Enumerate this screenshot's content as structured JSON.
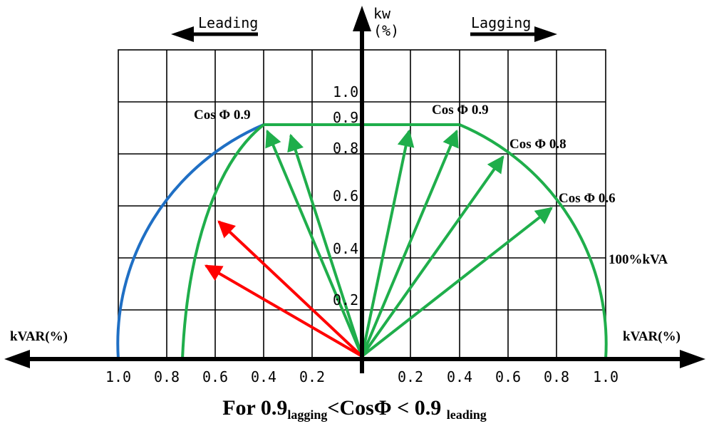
{
  "labels": {
    "kw_axis_line1": "kw",
    "kw_axis_line2": "(%)",
    "leading": "Leading",
    "lagging": "Lagging",
    "kvar_left": "kVAR(%)",
    "kvar_right": "kVAR(%)",
    "kva_circle": "100%kVA",
    "cos_09_left": "Cos Φ 0.9",
    "cos_09_right": "Cos Φ 0.9",
    "cos_08": "Cos Φ 0.8",
    "cos_06": "Cos Φ 0.6"
  },
  "y_ticks": [
    "1.0",
    "0.9",
    "0.8",
    "0.6",
    "0.4",
    "0.2"
  ],
  "x_ticks_left": [
    "1.0",
    "0.8",
    "0.6",
    "0.4",
    "0.2"
  ],
  "x_ticks_right": [
    "0.2",
    "0.4",
    "0.6",
    "0.8",
    "1.0"
  ],
  "caption": {
    "main": "For 0.9",
    "sub1": "lagging",
    "mid": "<CosΦ < 0.9",
    "sub2": "leading"
  },
  "colors": {
    "grid": "#000000",
    "green": "#1fae4b",
    "blue": "#1f6fc4",
    "red": "#ff0000"
  }
}
